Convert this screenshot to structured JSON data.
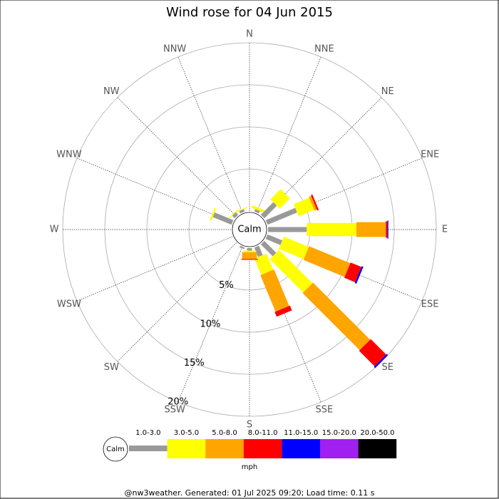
{
  "chart_data": {
    "type": "windrose",
    "title": "Wind rose for 04 Jun 2015",
    "categories": [
      "N",
      "NNE",
      "NE",
      "ENE",
      "E",
      "ESE",
      "SE",
      "SSE",
      "S",
      "SSW",
      "SW",
      "WSW",
      "W",
      "WNW",
      "NW",
      "NNW"
    ],
    "calm_label": "Calm",
    "rlim": [
      0,
      20
    ],
    "rticks": [
      {
        "value": 5,
        "label": "5%"
      },
      {
        "value": 10,
        "label": "10%"
      },
      {
        "value": 15,
        "label": "15%"
      },
      {
        "value": 20,
        "label": "20%"
      }
    ],
    "unit": "mph",
    "series": [
      {
        "name": "1.0-3.0",
        "color": "#999999",
        "values": [
          0,
          0.3,
          2.1,
          3.8,
          4.6,
          1.9,
          2.0,
          1.2,
          0.3,
          0.2,
          0,
          0,
          0,
          2.4,
          0.4,
          0.3
        ]
      },
      {
        "name": "3.0-5.0",
        "color": "#ffff00",
        "values": [
          0,
          0.3,
          1.7,
          2.0,
          5.9,
          3.2,
          5.6,
          2.1,
          0.2,
          0,
          0,
          0,
          0,
          0.2,
          0.1,
          0.1
        ]
      },
      {
        "name": "5.0-8.0",
        "color": "#ffa500",
        "values": [
          0,
          0,
          0,
          0.3,
          3.5,
          5.3,
          9.6,
          4.7,
          0.8,
          0,
          0,
          0,
          0,
          0,
          0,
          0
        ]
      },
      {
        "name": "8.0-11.0",
        "color": "#ff0000",
        "values": [
          0,
          0,
          0,
          0.2,
          0.2,
          1.4,
          2.6,
          0.6,
          0.1,
          0,
          0,
          0,
          0,
          0,
          0,
          0
        ]
      },
      {
        "name": "11.0-15.0",
        "color": "#0000ff",
        "values": [
          0,
          0,
          0,
          0,
          0.1,
          0.2,
          0.2,
          0,
          0,
          0,
          0,
          0,
          0,
          0,
          0,
          0
        ]
      },
      {
        "name": "15.0-20.0",
        "color": "#a020f0",
        "values": [
          0,
          0,
          0,
          0,
          0,
          0,
          0,
          0,
          0,
          0,
          0,
          0,
          0,
          0,
          0,
          0
        ]
      },
      {
        "name": "20.0-50.0",
        "color": "#000000",
        "values": [
          0,
          0,
          0,
          0,
          0,
          0,
          0,
          0,
          0,
          0,
          0,
          0,
          0,
          0,
          0,
          0
        ]
      }
    ],
    "footer": "@nw3weather. Generated: 01 Jul 2025 09:20; Load time: 0.11 s"
  }
}
